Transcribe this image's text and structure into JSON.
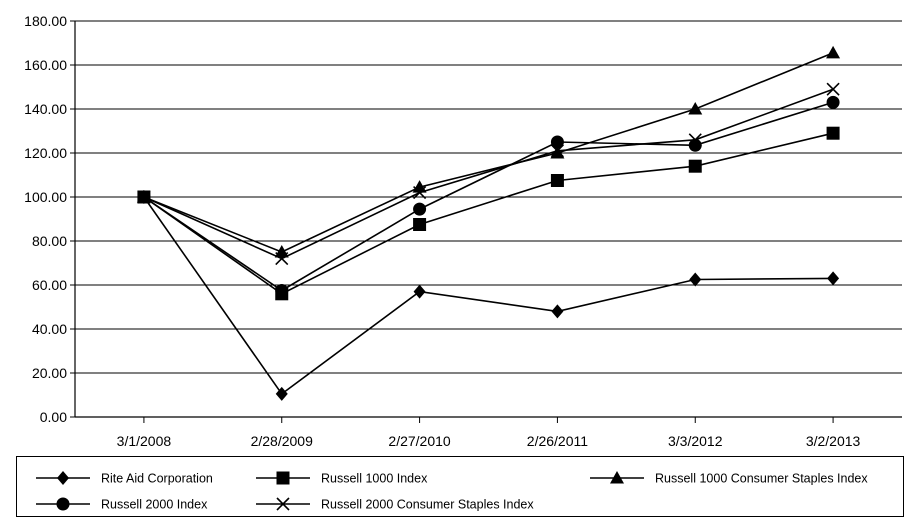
{
  "chart_data": {
    "type": "line",
    "title": "",
    "xlabel": "",
    "ylabel": "",
    "categories": [
      "3/1/2008",
      "2/28/2009",
      "2/27/2010",
      "2/26/2011",
      "3/3/2012",
      "3/2/2013"
    ],
    "y_ticks": [
      "0.00",
      "20.00",
      "40.00",
      "60.00",
      "80.00",
      "100.00",
      "120.00",
      "140.00",
      "160.00",
      "180.00"
    ],
    "ylim": [
      0,
      180
    ],
    "grid": "horizontal",
    "legend_position": "bottom",
    "series": [
      {
        "name": "Rite Aid Corporation",
        "marker": "diamond",
        "values": [
          100,
          10.5,
          57,
          48,
          62.5,
          63
        ]
      },
      {
        "name": "Russell 1000 Index",
        "marker": "square",
        "values": [
          100,
          56,
          87.5,
          107.5,
          114,
          129
        ]
      },
      {
        "name": "Russell 1000 Consumer Staples Index",
        "marker": "triangle",
        "values": [
          100,
          75,
          104.5,
          120,
          140,
          165.5
        ]
      },
      {
        "name": "Russell 2000 Index",
        "marker": "circle",
        "values": [
          100,
          57.5,
          94.5,
          125,
          123.5,
          143
        ]
      },
      {
        "name": "Russell 2000 Consumer Staples Index",
        "marker": "x",
        "values": [
          100,
          72,
          102,
          121,
          126,
          149
        ]
      }
    ]
  }
}
